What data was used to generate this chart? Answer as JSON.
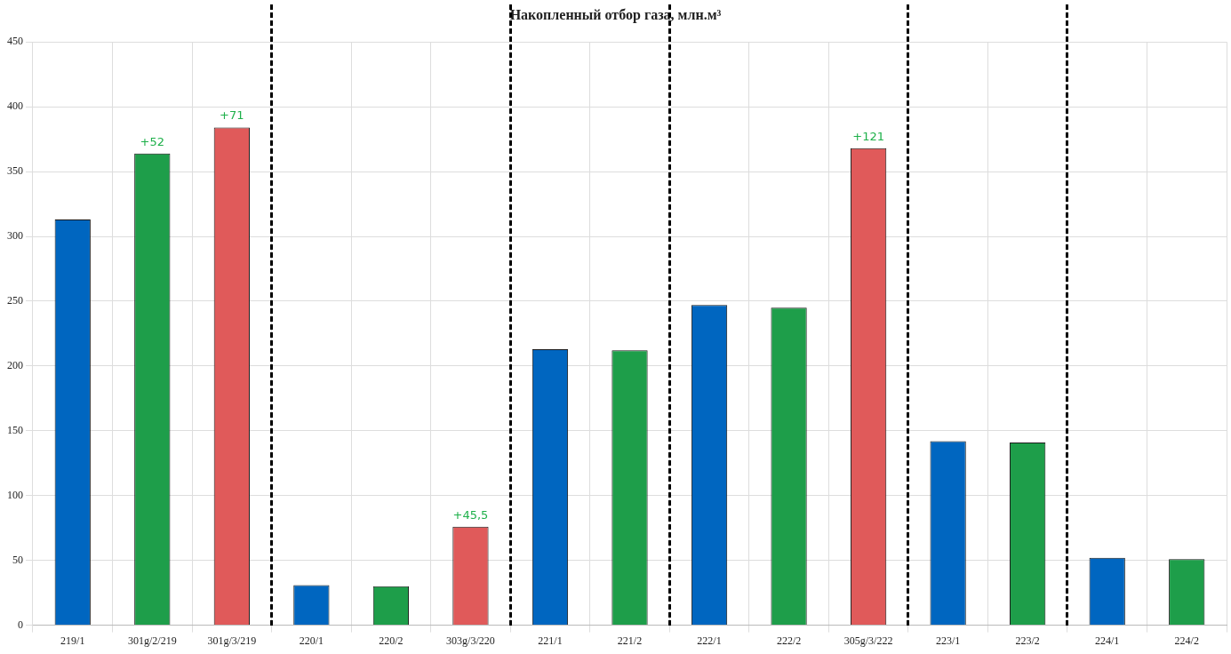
{
  "chart_data": {
    "type": "bar",
    "title": "Накопленный отбор газа, млн.м³",
    "categories": [
      "219/1",
      "301g/2/219",
      "301g/3/219",
      "220/1",
      "220/2",
      "303g/3/220",
      "221/1",
      "221/2",
      "222/1",
      "222/2",
      "305g/3/222",
      "223/1",
      "223/2",
      "224/1",
      "224/2"
    ],
    "values": [
      313,
      364,
      384,
      31,
      30,
      76,
      213,
      212,
      247,
      245,
      368,
      142,
      141,
      52,
      51
    ],
    "colors": [
      "#0066c0",
      "#1e9e4a",
      "#e05a5a",
      "#0066c0",
      "#1e9e4a",
      "#e05a5a",
      "#0066c0",
      "#1e9e4a",
      "#0066c0",
      "#1e9e4a",
      "#e05a5a",
      "#0066c0",
      "#1e9e4a",
      "#0066c0",
      "#1e9e4a"
    ],
    "ylim": [
      0,
      450
    ],
    "yticks": [
      0,
      50,
      100,
      150,
      200,
      250,
      300,
      350,
      400,
      450
    ],
    "grid": true,
    "legend": false,
    "annotations": [
      {
        "text": "+52",
        "x": "301g/2/219",
        "y": 364
      },
      {
        "text": "+71",
        "x": "301g/3/219",
        "y": 384
      },
      {
        "text": "+45,5",
        "x": "303g/3/220",
        "y": 76
      },
      {
        "text": "+121",
        "x": "305g/3/222",
        "y": 368
      }
    ]
  }
}
